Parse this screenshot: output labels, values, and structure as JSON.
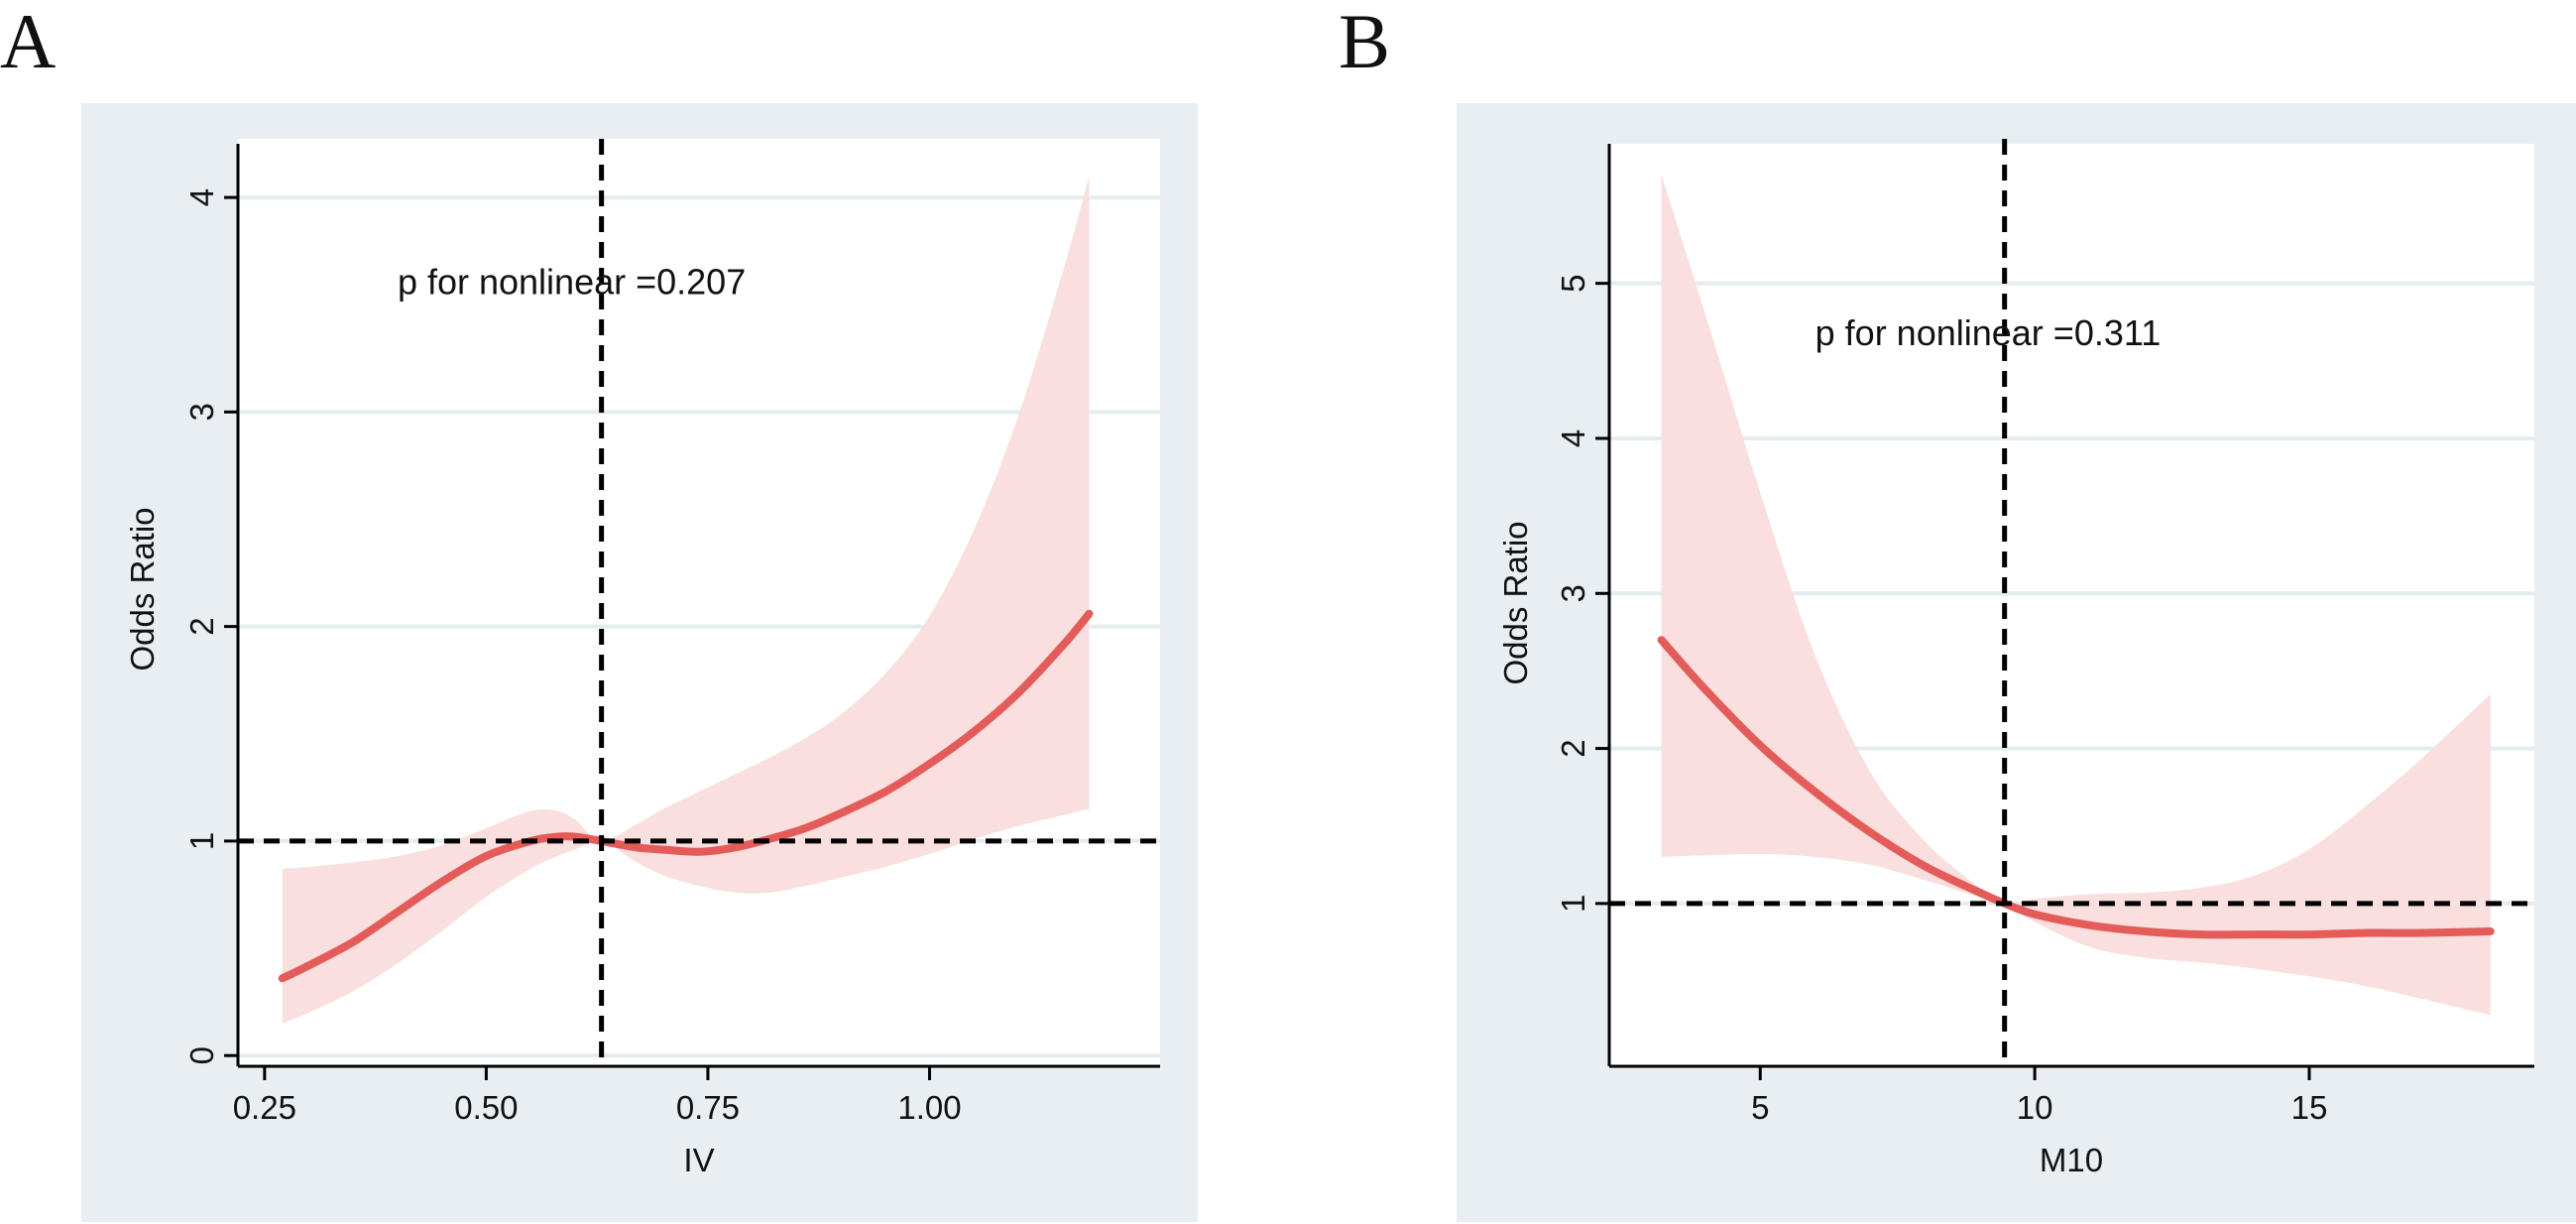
{
  "chart_data": [
    {
      "panel_label": "A",
      "type": "line",
      "title": "",
      "xlabel": "IV",
      "ylabel": "Odds Ratio",
      "xlim": [
        0.22,
        1.26
      ],
      "ylim": [
        -0.05,
        4.25
      ],
      "xticks": [
        0.25,
        0.5,
        0.75,
        1.0
      ],
      "xtick_labels": [
        "0.25",
        "0.50",
        "0.75",
        "1.00"
      ],
      "yticks": [
        0,
        1,
        2,
        3,
        4
      ],
      "ytick_labels": [
        "0",
        "1",
        "2",
        "3",
        "4"
      ],
      "grid": "horizontal",
      "reference_lines": {
        "vertical_x": 0.63,
        "horizontal_y": 1.0
      },
      "annotation": {
        "text": "p for nonlinear =0.207",
        "x": 0.4,
        "y": 3.55
      },
      "series": [
        {
          "name": "Odds Ratio",
          "color": "#e45c5a",
          "x": [
            0.27,
            0.3,
            0.35,
            0.4,
            0.45,
            0.5,
            0.55,
            0.58,
            0.6,
            0.63,
            0.67,
            0.7,
            0.74,
            0.78,
            0.82,
            0.86,
            0.9,
            0.95,
            1.0,
            1.05,
            1.1,
            1.15,
            1.18
          ],
          "y": [
            0.36,
            0.42,
            0.53,
            0.67,
            0.81,
            0.93,
            1.0,
            1.02,
            1.02,
            1.0,
            0.97,
            0.96,
            0.95,
            0.97,
            1.01,
            1.06,
            1.13,
            1.23,
            1.36,
            1.51,
            1.69,
            1.91,
            2.06
          ]
        }
      ],
      "ci_band": {
        "color": "#f9dfde",
        "x": [
          0.27,
          0.3,
          0.35,
          0.4,
          0.45,
          0.5,
          0.55,
          0.58,
          0.6,
          0.63,
          0.67,
          0.7,
          0.74,
          0.78,
          0.82,
          0.86,
          0.9,
          0.95,
          1.0,
          1.05,
          1.1,
          1.15,
          1.18
        ],
        "lower": [
          0.15,
          0.2,
          0.3,
          0.43,
          0.58,
          0.74,
          0.87,
          0.93,
          0.96,
          1.0,
          0.9,
          0.84,
          0.79,
          0.76,
          0.76,
          0.79,
          0.83,
          0.88,
          0.94,
          1.01,
          1.07,
          1.12,
          1.15
        ],
        "upper": [
          0.87,
          0.88,
          0.9,
          0.93,
          0.98,
          1.06,
          1.14,
          1.14,
          1.1,
          1.0,
          1.08,
          1.15,
          1.23,
          1.31,
          1.39,
          1.48,
          1.59,
          1.78,
          2.05,
          2.45,
          2.98,
          3.65,
          4.1
        ]
      }
    },
    {
      "panel_label": "B",
      "type": "line",
      "title": "",
      "xlabel": "M10",
      "ylabel": "Odds Ratio",
      "xlim": [
        2.25,
        19.1
      ],
      "ylim": [
        -0.05,
        5.9
      ],
      "xticks": [
        5,
        10,
        15
      ],
      "xtick_labels": [
        "5",
        "10",
        "15"
      ],
      "yticks": [
        1,
        2,
        3,
        4,
        5
      ],
      "ytick_labels": [
        "1",
        "2",
        "3",
        "4",
        "5"
      ],
      "grid": "horizontal",
      "reference_lines": {
        "vertical_x": 9.45,
        "horizontal_y": 1.0
      },
      "annotation": {
        "text": "p for nonlinear =0.311",
        "x": 6.0,
        "y": 4.6
      },
      "series": [
        {
          "name": "Odds Ratio",
          "color": "#e45c5a",
          "x": [
            3.2,
            4.0,
            5.0,
            6.0,
            7.0,
            8.0,
            9.0,
            9.45,
            10.0,
            11.0,
            12.0,
            13.0,
            14.0,
            15.0,
            16.0,
            17.0,
            18.3
          ],
          "y": [
            2.7,
            2.38,
            2.02,
            1.72,
            1.46,
            1.24,
            1.07,
            1.0,
            0.93,
            0.86,
            0.82,
            0.8,
            0.8,
            0.8,
            0.81,
            0.81,
            0.82
          ]
        }
      ],
      "ci_band": {
        "color": "#f9dfde",
        "x": [
          3.2,
          4.0,
          5.0,
          6.0,
          7.0,
          8.0,
          9.0,
          9.45,
          10.0,
          11.0,
          12.0,
          13.0,
          14.0,
          15.0,
          16.0,
          17.0,
          18.3
        ],
        "lower": [
          1.3,
          1.31,
          1.32,
          1.3,
          1.25,
          1.15,
          1.04,
          1.0,
          0.88,
          0.72,
          0.65,
          0.62,
          0.58,
          0.53,
          0.47,
          0.39,
          0.28
        ],
        "upper": [
          5.7,
          4.8,
          3.65,
          2.6,
          1.85,
          1.4,
          1.1,
          1.0,
          1.03,
          1.06,
          1.07,
          1.1,
          1.18,
          1.35,
          1.62,
          1.92,
          2.35
        ]
      }
    }
  ]
}
